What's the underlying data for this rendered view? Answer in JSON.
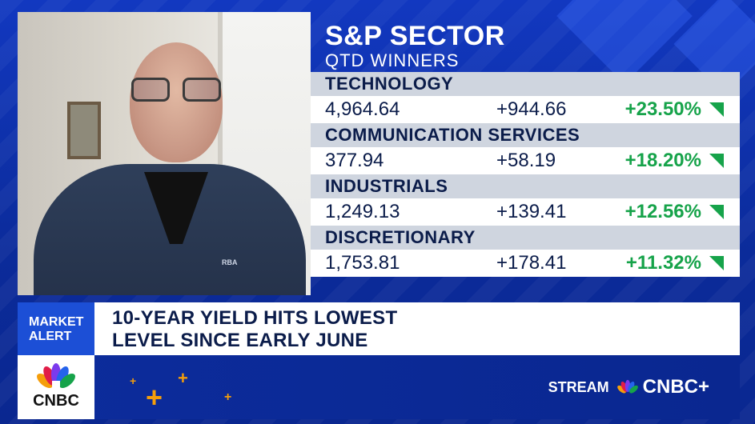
{
  "panel": {
    "title": "S&P SECTOR",
    "subtitle": "QTD WINNERS",
    "sectors": [
      {
        "name": "TECHNOLOGY",
        "price": "4,964.64",
        "change": "+944.66",
        "pct": "+23.50%"
      },
      {
        "name": "COMMUNICATION SERVICES",
        "price": "377.94",
        "change": "+58.19",
        "pct": "+18.20%"
      },
      {
        "name": "INDUSTRIALS",
        "price": "1,249.13",
        "change": "+139.41",
        "pct": "+12.56%"
      },
      {
        "name": "DISCRETIONARY",
        "price": "1,753.81",
        "change": "+178.41",
        "pct": "+11.32%"
      }
    ]
  },
  "alert": {
    "label_line1": "MARKET",
    "label_line2": "ALERT",
    "headline_line1": "10-YEAR YIELD HITS LOWEST",
    "headline_line2": "LEVEL SINCE EARLY JUNE"
  },
  "bottom": {
    "logo": "CNBC",
    "stream_label": "STREAM",
    "stream_brand": "CNBC+"
  },
  "video": {
    "jacket_logo": "RBA"
  },
  "colors": {
    "background": "#0d2fa8",
    "positive": "#16a34a",
    "alert_accent": "#1c4fd6",
    "plus_accent": "#f59e0b"
  }
}
